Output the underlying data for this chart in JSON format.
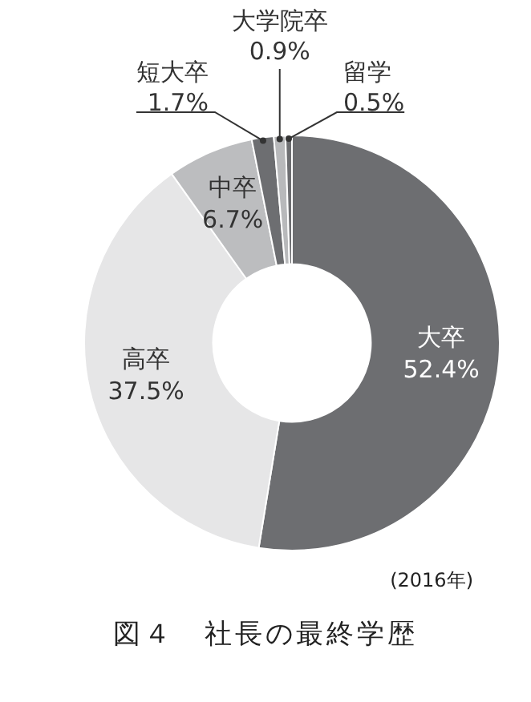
{
  "chart_data": {
    "type": "donut",
    "title": "図４　社長の最終学歴",
    "categories": [
      "大卒",
      "高卒",
      "中卒",
      "短大卒",
      "大学院卒",
      "留学"
    ],
    "values": [
      52.4,
      37.5,
      6.7,
      1.7,
      0.9,
      0.5
    ],
    "value_labels": [
      "52.4%",
      "37.5%",
      "6.7%",
      "1.7%",
      "0.9%",
      "0.5%"
    ],
    "colors": [
      "#6d6e71",
      "#e6e6e7",
      "#bcbdbf",
      "#6d6e71",
      "#b8b9bb",
      "#6d6e71"
    ],
    "legend": false,
    "annotations": [
      "(2016年)"
    ]
  }
}
